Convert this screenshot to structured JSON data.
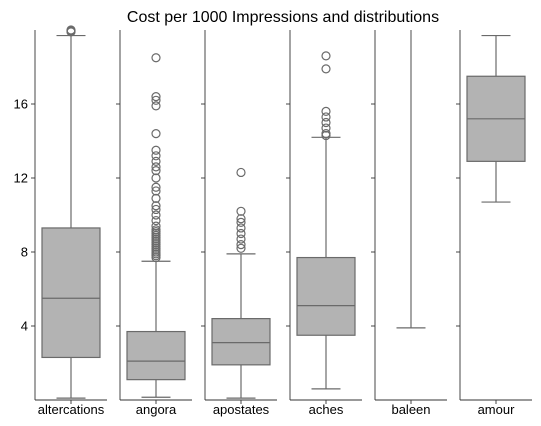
{
  "chart_data": {
    "type": "box",
    "title": "Cost per 1000 Impressions and distributions",
    "ylim": [
      0,
      20
    ],
    "yticks": [
      4,
      8,
      12,
      16
    ],
    "sharey_label_only_first_panel": true,
    "colors": {
      "box_fill": "#b3b3b3",
      "line": "#6a6a6a"
    },
    "panels": [
      {
        "category": "altercations",
        "whisker_low": 0.1,
        "q1": 2.3,
        "median": 5.5,
        "q3": 9.3,
        "whisker_high": 19.7,
        "fliers": [
          19.9,
          19.95,
          20.0
        ]
      },
      {
        "category": "angora",
        "whisker_low": 0.15,
        "q1": 1.1,
        "median": 2.1,
        "q3": 3.7,
        "whisker_high": 7.5,
        "fliers": [
          7.7,
          7.8,
          7.9,
          8.0,
          8.1,
          8.2,
          8.3,
          8.4,
          8.5,
          8.6,
          8.7,
          8.8,
          8.9,
          9.0,
          9.1,
          9.2,
          9.4,
          9.7,
          10.0,
          10.3,
          10.5,
          10.9,
          11.3,
          11.5,
          12.0,
          12.4,
          12.6,
          12.9,
          13.2,
          13.5,
          14.4,
          15.9,
          16.2,
          16.4,
          18.5
        ]
      },
      {
        "category": "apostates",
        "whisker_low": 0.1,
        "q1": 1.9,
        "median": 3.1,
        "q3": 4.4,
        "whisker_high": 7.9,
        "fliers": [
          8.2,
          8.4,
          8.7,
          9.0,
          9.3,
          9.6,
          9.8,
          10.2,
          12.3
        ]
      },
      {
        "category": "aches",
        "whisker_low": 0.6,
        "q1": 3.5,
        "median": 5.1,
        "q3": 7.7,
        "whisker_high": 14.2,
        "fliers": [
          14.3,
          14.4,
          14.7,
          15.0,
          15.3,
          15.6,
          17.9,
          18.6
        ]
      },
      {
        "category": "baleen",
        "whisker_low": 3.9,
        "q1": null,
        "median": null,
        "q3": null,
        "whisker_high": 20.0,
        "fliers": []
      },
      {
        "category": "amour",
        "whisker_low": 10.7,
        "q1": 12.9,
        "median": 15.2,
        "q3": 17.5,
        "whisker_high": 19.7,
        "fliers": []
      }
    ]
  }
}
